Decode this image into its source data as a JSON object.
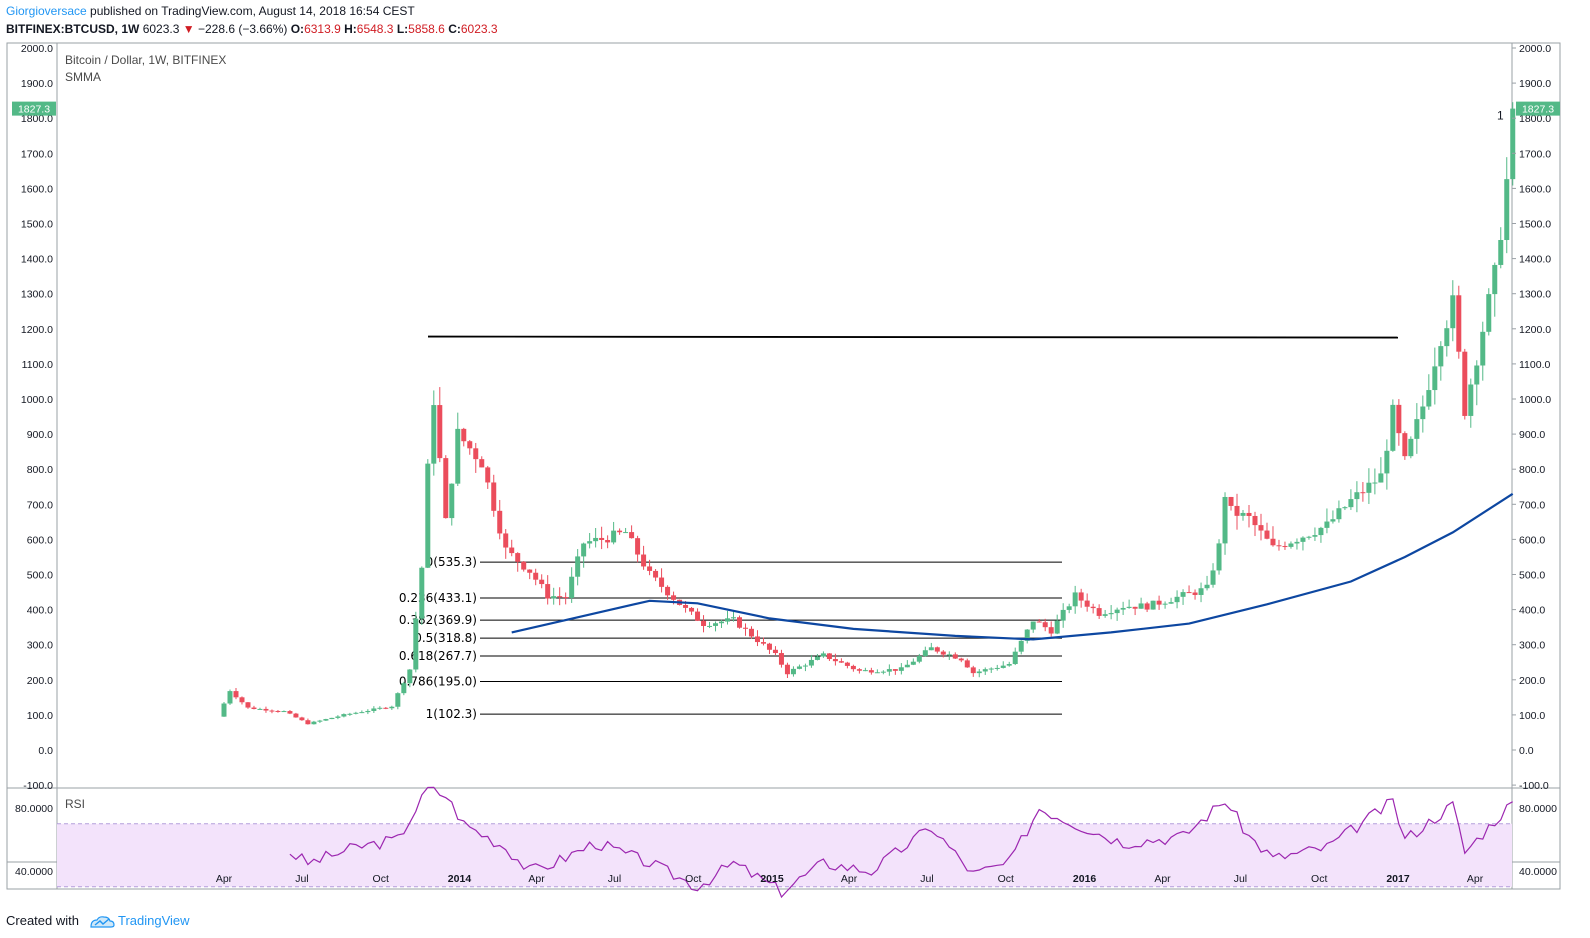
{
  "header": {
    "author": "Giorgioversace",
    "published": " published on TradingView.com, August 14, 2018 16:54 CEST"
  },
  "ticker": {
    "symbol": "BITFINEX:BTCUSD, 1W",
    "last": "6023.3",
    "change": "−228.6 (−3.66%)",
    "open_label": "O:",
    "open": "6313.9",
    "high_label": "H:",
    "high": "6548.3",
    "low_label": "L:",
    "low": "5858.6",
    "close_label": "C:",
    "close": "6023.3",
    "arrow": "▼"
  },
  "footer": {
    "created_with": "Created with",
    "brand": "TradingView"
  },
  "colors": {
    "up": "#53b987",
    "down": "#eb4d5c",
    "smma": "#0d47a1",
    "rsi": "#9c27b0",
    "rsi_band": "#f3e3fb",
    "price_tag": "#53b987"
  },
  "chart_data": {
    "type": "candlestick",
    "title": "Bitcoin / Dollar, 1W, BITFINEX",
    "indicator": "SMMA",
    "ylim": [
      -100,
      2000
    ],
    "yticks": [
      "2000.0",
      "1900.0",
      "1800.0",
      "1700.0",
      "1600.0",
      "1500.0",
      "1400.0",
      "1300.0",
      "1200.0",
      "1100.0",
      "1000.0",
      "900.0",
      "800.0",
      "700.0",
      "600.0",
      "500.0",
      "400.0",
      "300.0",
      "200.0",
      "100.0",
      "0.0",
      "-100.0"
    ],
    "xticks": [
      "Apr",
      "Jul",
      "Oct",
      "2014",
      "Apr",
      "Jul",
      "Oct",
      "2015",
      "Apr",
      "Jul",
      "Oct",
      "2016",
      "Apr",
      "Jul",
      "Oct",
      "2017",
      "Apr"
    ],
    "bold_xticks": [
      "2014",
      "2015",
      "2016",
      "2017"
    ],
    "last_price_tag": "1827.3",
    "stray_label": "1",
    "resistance_level": 1175,
    "fibonacci": [
      {
        "label": "0(535.3)",
        "value": 535.3
      },
      {
        "label": "0.236(433.1)",
        "value": 433.1
      },
      {
        "label": "0.382(369.9)",
        "value": 369.9
      },
      {
        "label": "0.5(318.8)",
        "value": 318.8
      },
      {
        "label": "0.618(267.7)",
        "value": 267.7
      },
      {
        "label": "0.786(195.0)",
        "value": 195.0
      },
      {
        "label": "1(102.3)",
        "value": 102.3
      }
    ],
    "price_waypoints": [
      {
        "d": "2013-03-25",
        "p": 95
      },
      {
        "d": "2013-04-08",
        "p": 170
      },
      {
        "d": "2013-04-29",
        "p": 120
      },
      {
        "d": "2013-06-10",
        "p": 110
      },
      {
        "d": "2013-07-08",
        "p": 75
      },
      {
        "d": "2013-08-19",
        "p": 100
      },
      {
        "d": "2013-10-14",
        "p": 125
      },
      {
        "d": "2013-11-04",
        "p": 230
      },
      {
        "d": "2013-11-18",
        "p": 520
      },
      {
        "d": "2013-11-25",
        "p": 800
      },
      {
        "d": "2013-12-02",
        "p": 1000
      },
      {
        "d": "2013-12-16",
        "p": 650
      },
      {
        "d": "2013-12-30",
        "p": 900
      },
      {
        "d": "2014-01-27",
        "p": 820
      },
      {
        "d": "2014-02-24",
        "p": 570
      },
      {
        "d": "2014-03-24",
        "p": 510
      },
      {
        "d": "2014-04-14",
        "p": 440
      },
      {
        "d": "2014-05-05",
        "p": 435
      },
      {
        "d": "2014-05-26",
        "p": 590
      },
      {
        "d": "2014-06-16",
        "p": 600
      },
      {
        "d": "2014-07-14",
        "p": 620
      },
      {
        "d": "2014-08-11",
        "p": 500
      },
      {
        "d": "2014-09-22",
        "p": 400
      },
      {
        "d": "2014-10-13",
        "p": 360
      },
      {
        "d": "2014-11-17",
        "p": 370
      },
      {
        "d": "2015-01-05",
        "p": 270
      },
      {
        "d": "2015-01-19",
        "p": 220
      },
      {
        "d": "2015-03-02",
        "p": 270
      },
      {
        "d": "2015-04-13",
        "p": 225
      },
      {
        "d": "2015-06-01",
        "p": 230
      },
      {
        "d": "2015-07-06",
        "p": 290
      },
      {
        "d": "2015-08-10",
        "p": 260
      },
      {
        "d": "2015-08-24",
        "p": 220
      },
      {
        "d": "2015-10-05",
        "p": 245
      },
      {
        "d": "2015-11-02",
        "p": 370
      },
      {
        "d": "2015-11-23",
        "p": 340
      },
      {
        "d": "2015-12-21",
        "p": 440
      },
      {
        "d": "2016-01-18",
        "p": 390
      },
      {
        "d": "2016-02-15",
        "p": 410
      },
      {
        "d": "2016-03-14",
        "p": 410
      },
      {
        "d": "2016-04-25",
        "p": 440
      },
      {
        "d": "2016-05-23",
        "p": 460
      },
      {
        "d": "2016-06-06",
        "p": 580
      },
      {
        "d": "2016-06-13",
        "p": 730
      },
      {
        "d": "2016-06-20",
        "p": 680
      },
      {
        "d": "2016-07-11",
        "p": 660
      },
      {
        "d": "2016-08-08",
        "p": 575
      },
      {
        "d": "2016-09-12",
        "p": 610
      },
      {
        "d": "2016-10-10",
        "p": 640
      },
      {
        "d": "2016-11-07",
        "p": 710
      },
      {
        "d": "2016-12-12",
        "p": 780
      },
      {
        "d": "2016-12-26",
        "p": 960
      },
      {
        "d": "2017-01-09",
        "p": 820
      },
      {
        "d": "2017-01-30",
        "p": 980
      },
      {
        "d": "2017-02-20",
        "p": 1180
      },
      {
        "d": "2017-03-06",
        "p": 1270
      },
      {
        "d": "2017-03-20",
        "p": 970
      },
      {
        "d": "2017-04-10",
        "p": 1200
      },
      {
        "d": "2017-04-24",
        "p": 1350
      },
      {
        "d": "2017-05-08",
        "p": 1620
      },
      {
        "d": "2017-05-15",
        "p": 1827.3
      }
    ],
    "smma_waypoints": [
      {
        "d": "2014-03-03",
        "p": 335
      },
      {
        "d": "2014-05-05",
        "p": 370
      },
      {
        "d": "2014-08-11",
        "p": 425
      },
      {
        "d": "2014-10-06",
        "p": 418
      },
      {
        "d": "2014-12-29",
        "p": 375
      },
      {
        "d": "2015-04-06",
        "p": 345
      },
      {
        "d": "2015-08-03",
        "p": 325
      },
      {
        "d": "2015-11-02",
        "p": 315
      },
      {
        "d": "2016-02-01",
        "p": 335
      },
      {
        "d": "2016-05-02",
        "p": 360
      },
      {
        "d": "2016-08-01",
        "p": 415
      },
      {
        "d": "2016-11-07",
        "p": 480
      },
      {
        "d": "2017-01-09",
        "p": 550
      },
      {
        "d": "2017-03-06",
        "p": 620
      },
      {
        "d": "2017-05-15",
        "p": 730
      }
    ],
    "rsi": {
      "label": "RSI",
      "ylim": [
        20,
        100
      ],
      "yticks": [
        "80.0000",
        "40.0000"
      ],
      "band": [
        70,
        30
      ],
      "waypoints": [
        {
          "d": "2013-06-17",
          "p": 52
        },
        {
          "d": "2013-07-08",
          "p": 45
        },
        {
          "d": "2013-09-02",
          "p": 55
        },
        {
          "d": "2013-10-21",
          "p": 60
        },
        {
          "d": "2013-11-25",
          "p": 92
        },
        {
          "d": "2013-12-16",
          "p": 88
        },
        {
          "d": "2014-01-06",
          "p": 70
        },
        {
          "d": "2014-02-24",
          "p": 55
        },
        {
          "d": "2014-03-24",
          "p": 40
        },
        {
          "d": "2014-04-21",
          "p": 45
        },
        {
          "d": "2014-06-09",
          "p": 58
        },
        {
          "d": "2014-08-11",
          "p": 45
        },
        {
          "d": "2014-10-06",
          "p": 30
        },
        {
          "d": "2014-11-17",
          "p": 45
        },
        {
          "d": "2015-01-12",
          "p": 27
        },
        {
          "d": "2015-03-02",
          "p": 45
        },
        {
          "d": "2015-04-27",
          "p": 40
        },
        {
          "d": "2015-07-06",
          "p": 68
        },
        {
          "d": "2015-08-24",
          "p": 38
        },
        {
          "d": "2015-10-05",
          "p": 45
        },
        {
          "d": "2015-11-09",
          "p": 80
        },
        {
          "d": "2015-12-21",
          "p": 70
        },
        {
          "d": "2016-02-15",
          "p": 58
        },
        {
          "d": "2016-04-25",
          "p": 62
        },
        {
          "d": "2016-06-13",
          "p": 85
        },
        {
          "d": "2016-07-11",
          "p": 62
        },
        {
          "d": "2016-08-08",
          "p": 48
        },
        {
          "d": "2016-10-10",
          "p": 55
        },
        {
          "d": "2016-12-26",
          "p": 84
        },
        {
          "d": "2017-01-09",
          "p": 60
        },
        {
          "d": "2017-03-06",
          "p": 82
        },
        {
          "d": "2017-03-20",
          "p": 52
        },
        {
          "d": "2017-05-15",
          "p": 84
        }
      ]
    }
  }
}
